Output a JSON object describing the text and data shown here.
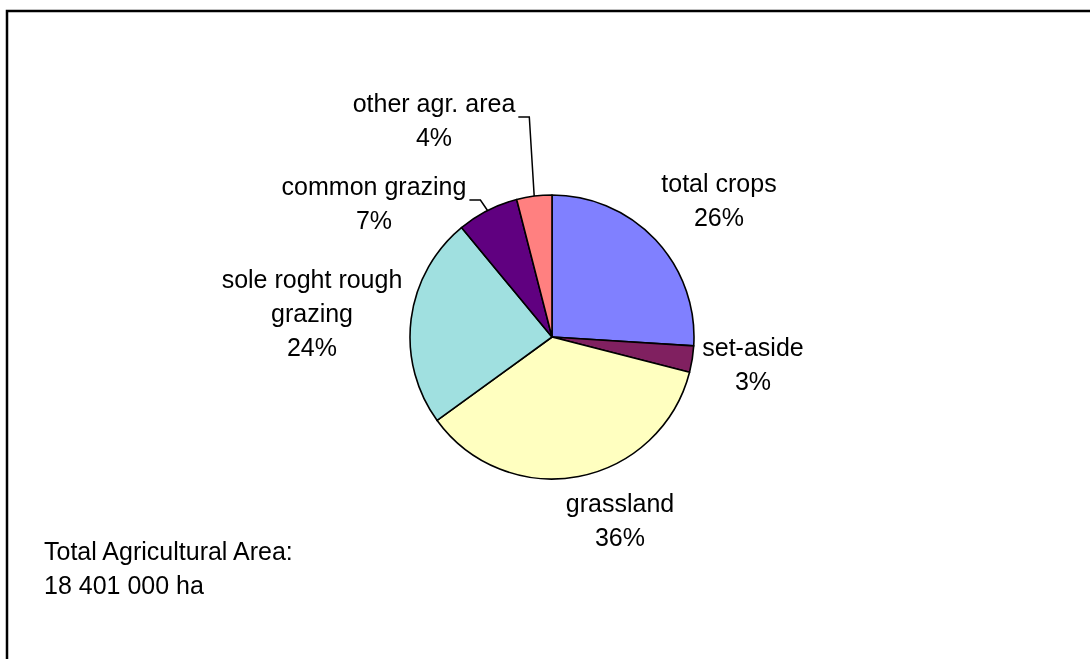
{
  "chart_data": {
    "type": "pie",
    "categories": [
      "total crops",
      "set-aside",
      "grassland",
      "sole roght rough grazing",
      "common grazing",
      "other agr. area"
    ],
    "values": [
      26,
      3,
      36,
      24,
      7,
      4
    ],
    "value_labels": [
      "26%",
      "3%",
      "36%",
      "24%",
      "7%",
      "4%"
    ],
    "colors": [
      "#8080ff",
      "#802060",
      "#ffffc0",
      "#a0e0e0",
      "#600080",
      "#ff8080"
    ],
    "annotations": [
      "Total Agricultural Area: 18 401 000 ha"
    ]
  }
}
